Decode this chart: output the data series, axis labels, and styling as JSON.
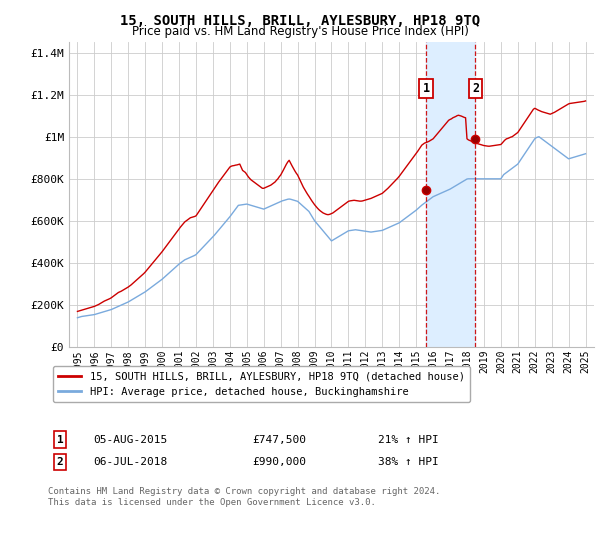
{
  "title": "15, SOUTH HILLS, BRILL, AYLESBURY, HP18 9TQ",
  "subtitle": "Price paid vs. HM Land Registry's House Price Index (HPI)",
  "legend_line1": "15, SOUTH HILLS, BRILL, AYLESBURY, HP18 9TQ (detached house)",
  "legend_line2": "HPI: Average price, detached house, Buckinghamshire",
  "footnote": "Contains HM Land Registry data © Crown copyright and database right 2024.\nThis data is licensed under the Open Government Licence v3.0.",
  "sale1_label": "1",
  "sale1_date": "05-AUG-2015",
  "sale1_price": "£747,500",
  "sale1_pct": "21% ↑ HPI",
  "sale1_year": 2015.58,
  "sale1_value": 747500,
  "sale2_label": "2",
  "sale2_date": "06-JUL-2018",
  "sale2_price": "£990,000",
  "sale2_pct": "38% ↑ HPI",
  "sale2_year": 2018.5,
  "sale2_value": 990000,
  "ylim": [
    0,
    1450000
  ],
  "yticks": [
    0,
    200000,
    400000,
    600000,
    800000,
    1000000,
    1200000,
    1400000
  ],
  "ytick_labels": [
    "£0",
    "£200K",
    "£400K",
    "£600K",
    "£800K",
    "£1M",
    "£1.2M",
    "£1.4M"
  ],
  "red_color": "#cc0000",
  "blue_color": "#7aaadd",
  "shade_color": "#ddeeff",
  "vline_color": "#cc0000",
  "grid_color": "#cccccc",
  "background_color": "#ffffff",
  "xlim_left": 1994.5,
  "xlim_right": 2025.5,
  "hpi_x": [
    1995.0,
    1995.083,
    1995.167,
    1995.25,
    1995.333,
    1995.417,
    1995.5,
    1995.583,
    1995.667,
    1995.75,
    1995.833,
    1995.917,
    1996.0,
    1996.083,
    1996.167,
    1996.25,
    1996.333,
    1996.417,
    1996.5,
    1996.583,
    1996.667,
    1996.75,
    1996.833,
    1996.917,
    1997.0,
    1997.083,
    1997.167,
    1997.25,
    1997.333,
    1997.417,
    1997.5,
    1997.583,
    1997.667,
    1997.75,
    1997.833,
    1997.917,
    1998.0,
    1998.083,
    1998.167,
    1998.25,
    1998.333,
    1998.417,
    1998.5,
    1998.583,
    1998.667,
    1998.75,
    1998.833,
    1998.917,
    1999.0,
    1999.083,
    1999.167,
    1999.25,
    1999.333,
    1999.417,
    1999.5,
    1999.583,
    1999.667,
    1999.75,
    1999.833,
    1999.917,
    2000.0,
    2000.083,
    2000.167,
    2000.25,
    2000.333,
    2000.417,
    2000.5,
    2000.583,
    2000.667,
    2000.75,
    2000.833,
    2000.917,
    2001.0,
    2001.083,
    2001.167,
    2001.25,
    2001.333,
    2001.417,
    2001.5,
    2001.583,
    2001.667,
    2001.75,
    2001.833,
    2001.917,
    2002.0,
    2002.083,
    2002.167,
    2002.25,
    2002.333,
    2002.417,
    2002.5,
    2002.583,
    2002.667,
    2002.75,
    2002.833,
    2002.917,
    2003.0,
    2003.083,
    2003.167,
    2003.25,
    2003.333,
    2003.417,
    2003.5,
    2003.583,
    2003.667,
    2003.75,
    2003.833,
    2003.917,
    2004.0,
    2004.083,
    2004.167,
    2004.25,
    2004.333,
    2004.417,
    2004.5,
    2004.583,
    2004.667,
    2004.75,
    2004.833,
    2004.917,
    2005.0,
    2005.083,
    2005.167,
    2005.25,
    2005.333,
    2005.417,
    2005.5,
    2005.583,
    2005.667,
    2005.75,
    2005.833,
    2005.917,
    2006.0,
    2006.083,
    2006.167,
    2006.25,
    2006.333,
    2006.417,
    2006.5,
    2006.583,
    2006.667,
    2006.75,
    2006.833,
    2006.917,
    2007.0,
    2007.083,
    2007.167,
    2007.25,
    2007.333,
    2007.417,
    2007.5,
    2007.583,
    2007.667,
    2007.75,
    2007.833,
    2007.917,
    2008.0,
    2008.083,
    2008.167,
    2008.25,
    2008.333,
    2008.417,
    2008.5,
    2008.583,
    2008.667,
    2008.75,
    2008.833,
    2008.917,
    2009.0,
    2009.083,
    2009.167,
    2009.25,
    2009.333,
    2009.417,
    2009.5,
    2009.583,
    2009.667,
    2009.75,
    2009.833,
    2009.917,
    2010.0,
    2010.083,
    2010.167,
    2010.25,
    2010.333,
    2010.417,
    2010.5,
    2010.583,
    2010.667,
    2010.75,
    2010.833,
    2010.917,
    2011.0,
    2011.083,
    2011.167,
    2011.25,
    2011.333,
    2011.417,
    2011.5,
    2011.583,
    2011.667,
    2011.75,
    2011.833,
    2011.917,
    2012.0,
    2012.083,
    2012.167,
    2012.25,
    2012.333,
    2012.417,
    2012.5,
    2012.583,
    2012.667,
    2012.75,
    2012.833,
    2012.917,
    2013.0,
    2013.083,
    2013.167,
    2013.25,
    2013.333,
    2013.417,
    2013.5,
    2013.583,
    2013.667,
    2013.75,
    2013.833,
    2013.917,
    2014.0,
    2014.083,
    2014.167,
    2014.25,
    2014.333,
    2014.417,
    2014.5,
    2014.583,
    2014.667,
    2014.75,
    2014.833,
    2014.917,
    2015.0,
    2015.083,
    2015.167,
    2015.25,
    2015.333,
    2015.417,
    2015.5,
    2015.583,
    2015.667,
    2015.75,
    2015.833,
    2015.917,
    2016.0,
    2016.083,
    2016.167,
    2016.25,
    2016.333,
    2016.417,
    2016.5,
    2016.583,
    2016.667,
    2016.75,
    2016.833,
    2016.917,
    2017.0,
    2017.083,
    2017.167,
    2017.25,
    2017.333,
    2017.417,
    2017.5,
    2017.583,
    2017.667,
    2017.75,
    2017.833,
    2017.917,
    2018.0,
    2018.083,
    2018.167,
    2018.25,
    2018.333,
    2018.417,
    2018.5,
    2018.583,
    2018.667,
    2018.75,
    2018.833,
    2018.917,
    2019.0,
    2019.083,
    2019.167,
    2019.25,
    2019.333,
    2019.417,
    2019.5,
    2019.583,
    2019.667,
    2019.75,
    2019.833,
    2019.917,
    2020.0,
    2020.083,
    2020.167,
    2020.25,
    2020.333,
    2020.417,
    2020.5,
    2020.583,
    2020.667,
    2020.75,
    2020.833,
    2020.917,
    2021.0,
    2021.083,
    2021.167,
    2021.25,
    2021.333,
    2021.417,
    2021.5,
    2021.583,
    2021.667,
    2021.75,
    2021.833,
    2021.917,
    2022.0,
    2022.083,
    2022.167,
    2022.25,
    2022.333,
    2022.417,
    2022.5,
    2022.583,
    2022.667,
    2022.75,
    2022.833,
    2022.917,
    2023.0,
    2023.083,
    2023.167,
    2023.25,
    2023.333,
    2023.417,
    2023.5,
    2023.583,
    2023.667,
    2023.75,
    2023.833,
    2023.917,
    2024.0,
    2024.083,
    2024.167,
    2024.25,
    2024.333,
    2024.417,
    2024.5,
    2024.583,
    2024.667,
    2024.75,
    2024.833,
    2024.917,
    2025.0
  ],
  "hpi_y": [
    140000,
    142000,
    144000,
    146000,
    147000,
    148000,
    149000,
    150000,
    151000,
    152000,
    153000,
    154000,
    155000,
    157000,
    159000,
    161000,
    163000,
    165000,
    167000,
    169000,
    171000,
    173000,
    175000,
    177000,
    179000,
    182000,
    185000,
    188000,
    191000,
    194000,
    197000,
    200000,
    203000,
    206000,
    209000,
    212000,
    215000,
    219000,
    223000,
    227000,
    231000,
    235000,
    239000,
    243000,
    247000,
    251000,
    255000,
    259000,
    263000,
    268000,
    273000,
    278000,
    283000,
    288000,
    293000,
    298000,
    303000,
    308000,
    313000,
    318000,
    323000,
    329000,
    335000,
    341000,
    347000,
    353000,
    359000,
    365000,
    371000,
    377000,
    383000,
    389000,
    395000,
    400000,
    405000,
    410000,
    415000,
    418000,
    421000,
    424000,
    427000,
    430000,
    433000,
    436000,
    440000,
    447000,
    454000,
    461000,
    468000,
    475000,
    482000,
    489000,
    496000,
    503000,
    510000,
    517000,
    524000,
    532000,
    540000,
    548000,
    556000,
    564000,
    572000,
    580000,
    588000,
    596000,
    604000,
    612000,
    620000,
    629000,
    638000,
    647000,
    656000,
    665000,
    674000,
    675000,
    676000,
    677000,
    678000,
    679000,
    680000,
    678000,
    676000,
    674000,
    672000,
    670000,
    668000,
    666000,
    664000,
    662000,
    660000,
    658000,
    656000,
    659000,
    662000,
    665000,
    668000,
    671000,
    674000,
    677000,
    680000,
    683000,
    686000,
    689000,
    692000,
    695000,
    697000,
    699000,
    701000,
    703000,
    704000,
    703000,
    701000,
    699000,
    697000,
    695000,
    693000,
    687000,
    681000,
    675000,
    669000,
    663000,
    657000,
    651000,
    645000,
    634000,
    623000,
    612000,
    601000,
    593000,
    585000,
    577000,
    569000,
    561000,
    553000,
    545000,
    537000,
    529000,
    521000,
    513000,
    505000,
    509000,
    513000,
    517000,
    521000,
    525000,
    529000,
    533000,
    537000,
    541000,
    545000,
    549000,
    553000,
    554000,
    555000,
    556000,
    557000,
    558000,
    557000,
    556000,
    555000,
    554000,
    553000,
    552000,
    551000,
    550000,
    549000,
    548000,
    547000,
    548000,
    549000,
    550000,
    551000,
    552000,
    553000,
    554000,
    555000,
    558000,
    561000,
    564000,
    567000,
    570000,
    573000,
    576000,
    579000,
    582000,
    585000,
    588000,
    591000,
    596000,
    601000,
    606000,
    611000,
    616000,
    621000,
    626000,
    631000,
    636000,
    641000,
    646000,
    651000,
    657000,
    663000,
    669000,
    675000,
    680000,
    685000,
    690000,
    695000,
    700000,
    705000,
    710000,
    715000,
    718000,
    721000,
    724000,
    727000,
    730000,
    733000,
    736000,
    739000,
    742000,
    745000,
    748000,
    751000,
    755000,
    759000,
    763000,
    767000,
    771000,
    775000,
    779000,
    783000,
    787000,
    791000,
    795000,
    799000,
    800000,
    800000,
    800000,
    800000,
    800000,
    800000,
    800000,
    800000,
    800000,
    800000,
    800000,
    800000,
    800000,
    800000,
    800000,
    800000,
    800000,
    800000,
    800000,
    800000,
    800000,
    800000,
    800000,
    800000,
    810000,
    820000,
    825000,
    830000,
    835000,
    840000,
    845000,
    850000,
    855000,
    860000,
    865000,
    870000,
    880000,
    890000,
    900000,
    910000,
    920000,
    930000,
    940000,
    950000,
    960000,
    970000,
    980000,
    990000,
    995000,
    998000,
    1000000,
    995000,
    990000,
    985000,
    980000,
    975000,
    970000,
    965000,
    960000,
    955000,
    950000,
    945000,
    940000,
    935000,
    930000,
    925000,
    920000,
    915000,
    910000,
    905000,
    900000,
    895000,
    897000,
    899000,
    901000,
    903000,
    905000,
    907000,
    909000,
    911000,
    913000,
    915000,
    917000,
    919000
  ],
  "red_x": [
    1995.0,
    1995.083,
    1995.167,
    1995.25,
    1995.333,
    1995.417,
    1995.5,
    1995.583,
    1995.667,
    1995.75,
    1995.833,
    1995.917,
    1996.0,
    1996.083,
    1996.167,
    1996.25,
    1996.333,
    1996.417,
    1996.5,
    1996.583,
    1996.667,
    1996.75,
    1996.833,
    1996.917,
    1997.0,
    1997.083,
    1997.167,
    1997.25,
    1997.333,
    1997.417,
    1997.5,
    1997.583,
    1997.667,
    1997.75,
    1997.833,
    1997.917,
    1998.0,
    1998.083,
    1998.167,
    1998.25,
    1998.333,
    1998.417,
    1998.5,
    1998.583,
    1998.667,
    1998.75,
    1998.833,
    1998.917,
    1999.0,
    1999.083,
    1999.167,
    1999.25,
    1999.333,
    1999.417,
    1999.5,
    1999.583,
    1999.667,
    1999.75,
    1999.833,
    1999.917,
    2000.0,
    2000.083,
    2000.167,
    2000.25,
    2000.333,
    2000.417,
    2000.5,
    2000.583,
    2000.667,
    2000.75,
    2000.833,
    2000.917,
    2001.0,
    2001.083,
    2001.167,
    2001.25,
    2001.333,
    2001.417,
    2001.5,
    2001.583,
    2001.667,
    2001.75,
    2001.833,
    2001.917,
    2002.0,
    2002.083,
    2002.167,
    2002.25,
    2002.333,
    2002.417,
    2002.5,
    2002.583,
    2002.667,
    2002.75,
    2002.833,
    2002.917,
    2003.0,
    2003.083,
    2003.167,
    2003.25,
    2003.333,
    2003.417,
    2003.5,
    2003.583,
    2003.667,
    2003.75,
    2003.833,
    2003.917,
    2004.0,
    2004.083,
    2004.167,
    2004.25,
    2004.333,
    2004.417,
    2004.5,
    2004.583,
    2004.667,
    2004.75,
    2004.833,
    2004.917,
    2005.0,
    2005.083,
    2005.167,
    2005.25,
    2005.333,
    2005.417,
    2005.5,
    2005.583,
    2005.667,
    2005.75,
    2005.833,
    2005.917,
    2006.0,
    2006.083,
    2006.167,
    2006.25,
    2006.333,
    2006.417,
    2006.5,
    2006.583,
    2006.667,
    2006.75,
    2006.833,
    2006.917,
    2007.0,
    2007.083,
    2007.167,
    2007.25,
    2007.333,
    2007.417,
    2007.5,
    2007.583,
    2007.667,
    2007.75,
    2007.833,
    2007.917,
    2008.0,
    2008.083,
    2008.167,
    2008.25,
    2008.333,
    2008.417,
    2008.5,
    2008.583,
    2008.667,
    2008.75,
    2008.833,
    2008.917,
    2009.0,
    2009.083,
    2009.167,
    2009.25,
    2009.333,
    2009.417,
    2009.5,
    2009.583,
    2009.667,
    2009.75,
    2009.833,
    2009.917,
    2010.0,
    2010.083,
    2010.167,
    2010.25,
    2010.333,
    2010.417,
    2010.5,
    2010.583,
    2010.667,
    2010.75,
    2010.833,
    2010.917,
    2011.0,
    2011.083,
    2011.167,
    2011.25,
    2011.333,
    2011.417,
    2011.5,
    2011.583,
    2011.667,
    2011.75,
    2011.833,
    2011.917,
    2012.0,
    2012.083,
    2012.167,
    2012.25,
    2012.333,
    2012.417,
    2012.5,
    2012.583,
    2012.667,
    2012.75,
    2012.833,
    2012.917,
    2013.0,
    2013.083,
    2013.167,
    2013.25,
    2013.333,
    2013.417,
    2013.5,
    2013.583,
    2013.667,
    2013.75,
    2013.833,
    2013.917,
    2014.0,
    2014.083,
    2014.167,
    2014.25,
    2014.333,
    2014.417,
    2014.5,
    2014.583,
    2014.667,
    2014.75,
    2014.833,
    2014.917,
    2015.0,
    2015.083,
    2015.167,
    2015.25,
    2015.333,
    2015.417,
    2015.5,
    2015.583,
    2015.667,
    2015.75,
    2015.833,
    2015.917,
    2016.0,
    2016.083,
    2016.167,
    2016.25,
    2016.333,
    2016.417,
    2016.5,
    2016.583,
    2016.667,
    2016.75,
    2016.833,
    2016.917,
    2017.0,
    2017.083,
    2017.167,
    2017.25,
    2017.333,
    2017.417,
    2017.5,
    2017.583,
    2017.667,
    2017.75,
    2017.833,
    2017.917,
    2018.0,
    2018.083,
    2018.167,
    2018.25,
    2018.333,
    2018.417,
    2018.5,
    2018.583,
    2018.667,
    2018.75,
    2018.833,
    2018.917,
    2019.0,
    2019.083,
    2019.167,
    2019.25,
    2019.333,
    2019.417,
    2019.5,
    2019.583,
    2019.667,
    2019.75,
    2019.833,
    2019.917,
    2020.0,
    2020.083,
    2020.167,
    2020.25,
    2020.333,
    2020.417,
    2020.5,
    2020.583,
    2020.667,
    2020.75,
    2020.833,
    2020.917,
    2021.0,
    2021.083,
    2021.167,
    2021.25,
    2021.333,
    2021.417,
    2021.5,
    2021.583,
    2021.667,
    2021.75,
    2021.833,
    2021.917,
    2022.0,
    2022.083,
    2022.167,
    2022.25,
    2022.333,
    2022.417,
    2022.5,
    2022.583,
    2022.667,
    2022.75,
    2022.833,
    2022.917,
    2023.0,
    2023.083,
    2023.167,
    2023.25,
    2023.333,
    2023.417,
    2023.5,
    2023.583,
    2023.667,
    2023.75,
    2023.833,
    2023.917,
    2024.0,
    2024.083,
    2024.167,
    2024.25,
    2024.333,
    2024.417,
    2024.5,
    2024.583,
    2024.667,
    2024.75,
    2024.833,
    2024.917,
    2025.0
  ],
  "red_y": [
    170000,
    172000,
    174000,
    176000,
    178000,
    180000,
    182000,
    184000,
    186000,
    188000,
    190000,
    192000,
    194000,
    197000,
    200000,
    203000,
    207000,
    211000,
    215000,
    219000,
    222000,
    225000,
    228000,
    231000,
    235000,
    240000,
    245000,
    250000,
    255000,
    260000,
    263000,
    266000,
    270000,
    274000,
    278000,
    282000,
    286000,
    291000,
    296000,
    302000,
    308000,
    314000,
    320000,
    326000,
    332000,
    338000,
    344000,
    350000,
    357000,
    365000,
    373000,
    381000,
    389000,
    397000,
    405000,
    413000,
    421000,
    429000,
    437000,
    445000,
    454000,
    463000,
    472000,
    481000,
    490000,
    499000,
    508000,
    517000,
    526000,
    535000,
    544000,
    553000,
    563000,
    571000,
    579000,
    587000,
    595000,
    600000,
    605000,
    610000,
    615000,
    617000,
    619000,
    621000,
    624000,
    634000,
    644000,
    654000,
    664000,
    674000,
    684000,
    694000,
    704000,
    714000,
    724000,
    734000,
    744000,
    754000,
    764000,
    774000,
    784000,
    793000,
    802000,
    811000,
    820000,
    829000,
    838000,
    847000,
    856000,
    860000,
    862000,
    863000,
    865000,
    866000,
    868000,
    870000,
    855000,
    840000,
    835000,
    830000,
    820000,
    810000,
    802000,
    795000,
    790000,
    785000,
    780000,
    775000,
    770000,
    765000,
    760000,
    755000,
    755000,
    758000,
    761000,
    764000,
    767000,
    770000,
    775000,
    780000,
    785000,
    793000,
    800000,
    810000,
    818000,
    830000,
    843000,
    856000,
    869000,
    880000,
    888000,
    875000,
    862000,
    850000,
    838000,
    827000,
    818000,
    804000,
    790000,
    775000,
    761000,
    749000,
    738000,
    727000,
    717000,
    706000,
    696000,
    686000,
    677000,
    669000,
    661000,
    654000,
    648000,
    643000,
    638000,
    635000,
    632000,
    630000,
    630000,
    632000,
    635000,
    638000,
    643000,
    648000,
    653000,
    658000,
    663000,
    668000,
    673000,
    678000,
    683000,
    688000,
    693000,
    695000,
    696000,
    697000,
    698000,
    697000,
    696000,
    695000,
    694000,
    694000,
    695000,
    697000,
    699000,
    701000,
    703000,
    705000,
    707000,
    710000,
    713000,
    716000,
    719000,
    722000,
    725000,
    728000,
    731000,
    737000,
    743000,
    749000,
    755000,
    762000,
    769000,
    776000,
    783000,
    790000,
    797000,
    804000,
    812000,
    821000,
    830000,
    839000,
    848000,
    857000,
    866000,
    875000,
    884000,
    893000,
    902000,
    911000,
    920000,
    930000,
    940000,
    950000,
    960000,
    965000,
    970000,
    972000,
    975000,
    978000,
    982000,
    986000,
    990000,
    998000,
    1006000,
    1014000,
    1022000,
    1030000,
    1038000,
    1046000,
    1054000,
    1062000,
    1070000,
    1078000,
    1082000,
    1085000,
    1090000,
    1093000,
    1096000,
    1100000,
    1102000,
    1100000,
    1098000,
    1095000,
    1092000,
    1090000,
    990000,
    985000,
    982000,
    979000,
    976000,
    973000,
    970000,
    968000,
    966000,
    964000,
    962000,
    960000,
    958000,
    957000,
    956000,
    955000,
    955000,
    956000,
    957000,
    958000,
    959000,
    960000,
    961000,
    962000,
    963000,
    970000,
    978000,
    985000,
    990000,
    992000,
    995000,
    998000,
    1000000,
    1005000,
    1010000,
    1015000,
    1020000,
    1030000,
    1040000,
    1050000,
    1060000,
    1070000,
    1080000,
    1090000,
    1100000,
    1110000,
    1120000,
    1130000,
    1135000,
    1132000,
    1128000,
    1125000,
    1122000,
    1119000,
    1117000,
    1115000,
    1113000,
    1111000,
    1109000,
    1107000,
    1110000,
    1113000,
    1116000,
    1120000,
    1124000,
    1128000,
    1132000,
    1136000,
    1140000,
    1144000,
    1148000,
    1152000,
    1156000,
    1158000,
    1159000,
    1160000,
    1161000,
    1162000,
    1163000,
    1164000,
    1165000,
    1166000,
    1167000,
    1168000,
    1170000
  ]
}
